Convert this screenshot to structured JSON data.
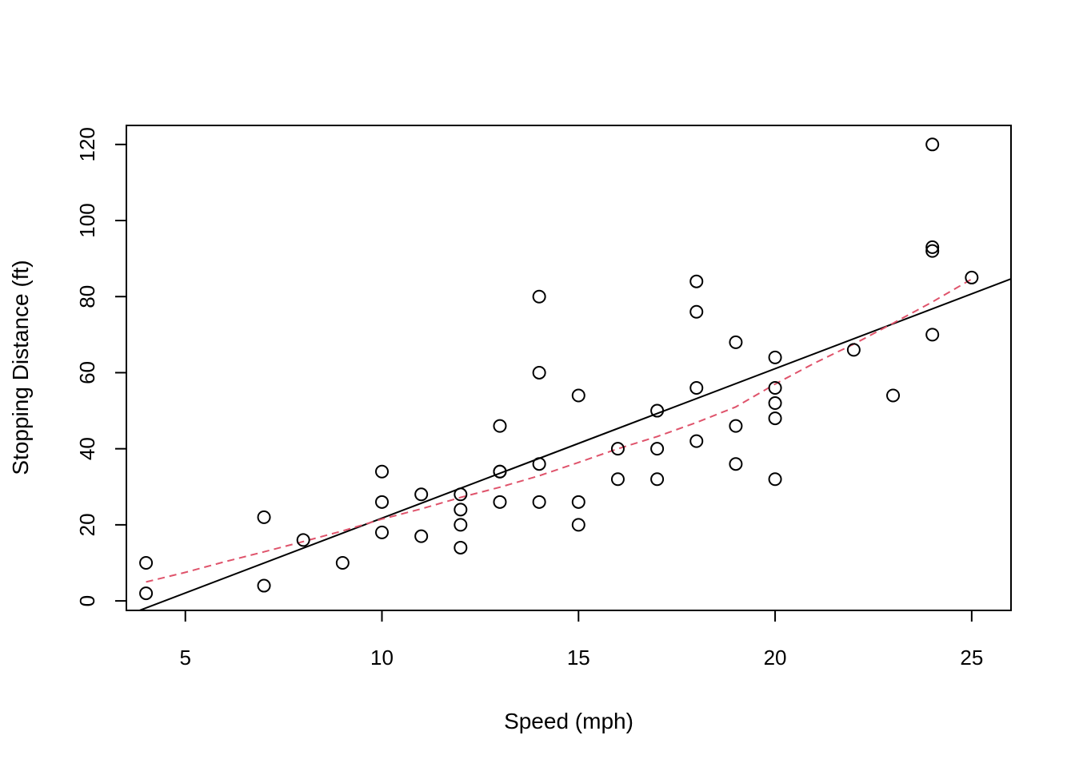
{
  "chart_data": {
    "type": "scatter",
    "title": "",
    "xlabel": "Speed (mph)",
    "ylabel": "Stopping Distance (ft)",
    "xlim": [
      3.5,
      26
    ],
    "ylim": [
      -2.5,
      125
    ],
    "x_ticks": [
      5,
      10,
      15,
      20,
      25
    ],
    "y_ticks": [
      0,
      20,
      40,
      60,
      80,
      100,
      120
    ],
    "grid": false,
    "legend": "none",
    "points": [
      {
        "x": 4,
        "y": 2
      },
      {
        "x": 4,
        "y": 10
      },
      {
        "x": 7,
        "y": 4
      },
      {
        "x": 7,
        "y": 22
      },
      {
        "x": 8,
        "y": 16
      },
      {
        "x": 9,
        "y": 10
      },
      {
        "x": 10,
        "y": 18
      },
      {
        "x": 10,
        "y": 26
      },
      {
        "x": 10,
        "y": 34
      },
      {
        "x": 11,
        "y": 17
      },
      {
        "x": 11,
        "y": 28
      },
      {
        "x": 12,
        "y": 14
      },
      {
        "x": 12,
        "y": 20
      },
      {
        "x": 12,
        "y": 24
      },
      {
        "x": 12,
        "y": 28
      },
      {
        "x": 13,
        "y": 26
      },
      {
        "x": 13,
        "y": 34
      },
      {
        "x": 13,
        "y": 34
      },
      {
        "x": 13,
        "y": 46
      },
      {
        "x": 14,
        "y": 26
      },
      {
        "x": 14,
        "y": 36
      },
      {
        "x": 14,
        "y": 60
      },
      {
        "x": 14,
        "y": 80
      },
      {
        "x": 15,
        "y": 20
      },
      {
        "x": 15,
        "y": 26
      },
      {
        "x": 15,
        "y": 54
      },
      {
        "x": 16,
        "y": 32
      },
      {
        "x": 16,
        "y": 40
      },
      {
        "x": 17,
        "y": 32
      },
      {
        "x": 17,
        "y": 40
      },
      {
        "x": 17,
        "y": 50
      },
      {
        "x": 18,
        "y": 42
      },
      {
        "x": 18,
        "y": 56
      },
      {
        "x": 18,
        "y": 76
      },
      {
        "x": 18,
        "y": 84
      },
      {
        "x": 19,
        "y": 36
      },
      {
        "x": 19,
        "y": 46
      },
      {
        "x": 19,
        "y": 68
      },
      {
        "x": 20,
        "y": 32
      },
      {
        "x": 20,
        "y": 48
      },
      {
        "x": 20,
        "y": 52
      },
      {
        "x": 20,
        "y": 56
      },
      {
        "x": 20,
        "y": 64
      },
      {
        "x": 22,
        "y": 66
      },
      {
        "x": 23,
        "y": 54
      },
      {
        "x": 24,
        "y": 70
      },
      {
        "x": 24,
        "y": 92
      },
      {
        "x": 24,
        "y": 93
      },
      {
        "x": 24,
        "y": 120
      },
      {
        "x": 25,
        "y": 85
      }
    ],
    "regression_line": {
      "intercept": -17.579,
      "slope": 3.932,
      "color": "#000000",
      "style": "solid"
    },
    "smooth_line": {
      "color": "#DF536B",
      "style": "dashed",
      "points": [
        {
          "x": 4,
          "y": 4.97
        },
        {
          "x": 5,
          "y": 7.5
        },
        {
          "x": 6,
          "y": 10.3
        },
        {
          "x": 7,
          "y": 12.9
        },
        {
          "x": 8,
          "y": 15.6
        },
        {
          "x": 9,
          "y": 18.4
        },
        {
          "x": 10,
          "y": 21.5
        },
        {
          "x": 11,
          "y": 24.2
        },
        {
          "x": 12,
          "y": 27.2
        },
        {
          "x": 13,
          "y": 29.9
        },
        {
          "x": 14,
          "y": 32.9
        },
        {
          "x": 15,
          "y": 36.4
        },
        {
          "x": 16,
          "y": 40.0
        },
        {
          "x": 17,
          "y": 43.2
        },
        {
          "x": 18,
          "y": 46.9
        },
        {
          "x": 19,
          "y": 51.0
        },
        {
          "x": 20,
          "y": 57.0
        },
        {
          "x": 21,
          "y": 62.5
        },
        {
          "x": 22,
          "y": 67.5
        },
        {
          "x": 23,
          "y": 73.0
        },
        {
          "x": 24,
          "y": 78.6
        },
        {
          "x": 25,
          "y": 84.6
        }
      ]
    }
  }
}
